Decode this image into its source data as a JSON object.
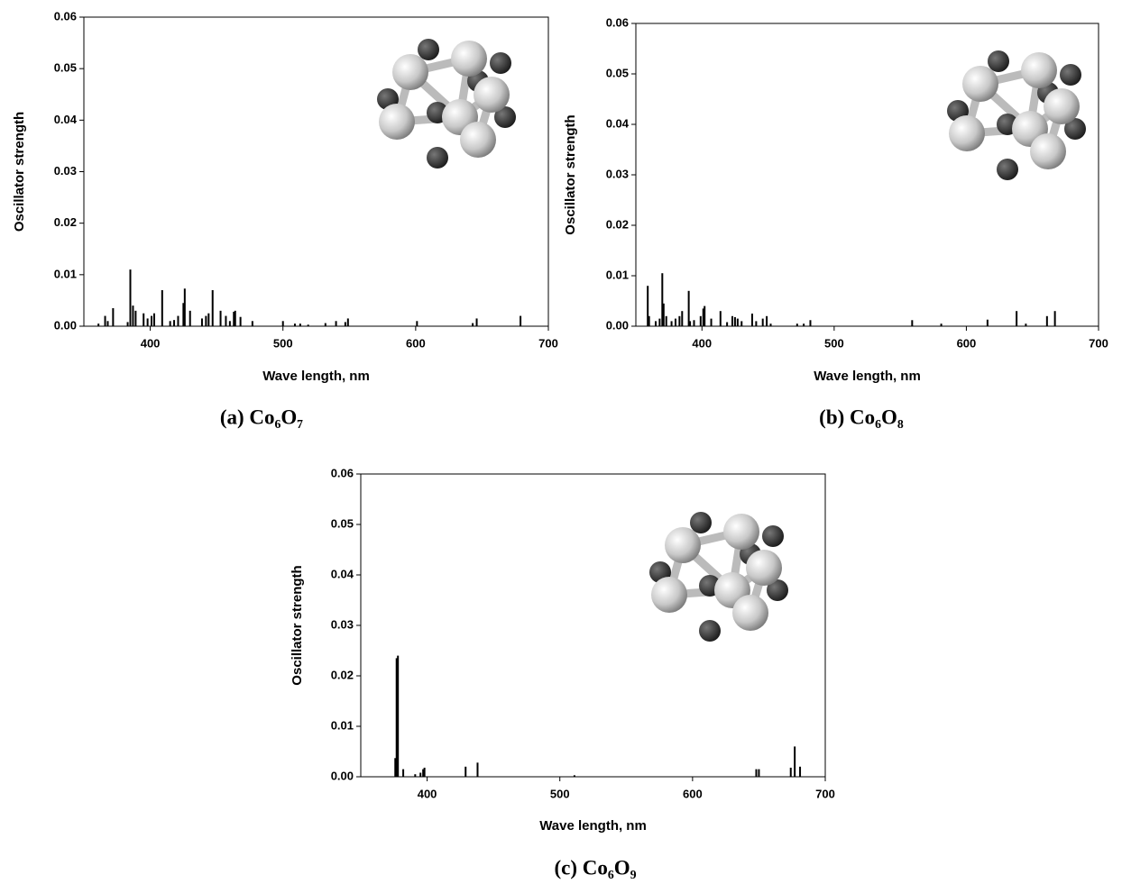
{
  "chart_data": [
    {
      "type": "bar",
      "caption": "(a) Co₆O₇",
      "x_label": "Wave length, nm",
      "y_label": "Oscillator strength",
      "color": "#000000",
      "xlim": [
        350,
        700
      ],
      "xticks": [
        400,
        500,
        600,
        700
      ],
      "ylim": [
        0,
        0.06
      ],
      "yticks": [
        {
          "value": 0,
          "label": "0.00"
        },
        0.01,
        0.02,
        0.03,
        0.04,
        0.05,
        0.06
      ],
      "x": [
        361,
        366,
        368,
        372,
        383,
        385,
        387,
        389,
        395,
        398,
        401,
        403,
        409,
        415,
        418,
        421,
        425,
        426,
        430,
        439,
        442,
        444,
        447,
        453,
        457,
        460,
        463,
        464,
        468,
        477,
        500,
        509,
        513,
        519,
        532,
        540,
        547,
        549,
        601,
        643,
        646,
        679
      ],
      "values": [
        0.0005,
        0.002,
        0.001,
        0.0035,
        0.0008,
        0.011,
        0.004,
        0.003,
        0.0025,
        0.0015,
        0.002,
        0.0025,
        0.007,
        0.001,
        0.0012,
        0.002,
        0.0045,
        0.0073,
        0.003,
        0.0015,
        0.002,
        0.0025,
        0.007,
        0.003,
        0.002,
        0.001,
        0.0028,
        0.003,
        0.0018,
        0.001,
        0.001,
        0.0005,
        0.0005,
        0.0003,
        0.0006,
        0.001,
        0.0008,
        0.0015,
        0.001,
        0.0006,
        0.0015,
        0.002
      ]
    },
    {
      "type": "bar",
      "caption": "(b) Co₆O₈",
      "x_label": "Wave length, nm",
      "y_label": "Oscillator strength",
      "color": "#000000",
      "xlim": [
        350,
        700
      ],
      "xticks": [
        400,
        500,
        600,
        700
      ],
      "ylim": [
        0,
        0.06
      ],
      "yticks": [
        {
          "value": 0,
          "label": "0.00"
        },
        0.01,
        0.02,
        0.03,
        0.04,
        0.05,
        0.06
      ],
      "x": [
        359,
        360,
        365,
        368,
        370,
        371,
        373,
        377,
        380,
        383,
        385,
        390,
        391,
        394,
        399,
        401,
        402,
        407,
        414,
        419,
        423,
        425,
        427,
        430,
        438,
        441,
        446,
        449,
        452,
        472,
        477,
        482,
        559,
        581,
        616,
        638,
        645,
        661,
        667
      ],
      "values": [
        0.008,
        0.002,
        0.001,
        0.0015,
        0.0105,
        0.0045,
        0.002,
        0.001,
        0.0015,
        0.002,
        0.003,
        0.007,
        0.001,
        0.0012,
        0.002,
        0.0035,
        0.004,
        0.0015,
        0.003,
        0.0008,
        0.002,
        0.0018,
        0.0015,
        0.001,
        0.0025,
        0.001,
        0.0015,
        0.002,
        0.0005,
        0.0005,
        0.0005,
        0.0012,
        0.0012,
        0.0005,
        0.0013,
        0.003,
        0.0005,
        0.002,
        0.003
      ]
    },
    {
      "type": "bar",
      "caption": "(c) Co₆O₉",
      "x_label": "Wave length, nm",
      "y_label": "Oscillator strength",
      "color": "#000000",
      "xlim": [
        350,
        700
      ],
      "xticks": [
        400,
        500,
        600,
        700
      ],
      "ylim": [
        0,
        0.06
      ],
      "yticks": [
        {
          "value": 0,
          "label": "0.00"
        },
        0.01,
        0.02,
        0.03,
        0.04,
        0.05,
        0.06
      ],
      "x": [
        376,
        377,
        378,
        382,
        391,
        395,
        397,
        398,
        429,
        438,
        511,
        648,
        650,
        674,
        677,
        681
      ],
      "values": [
        0.0037,
        0.0235,
        0.024,
        0.0015,
        0.0005,
        0.0008,
        0.0015,
        0.0018,
        0.002,
        0.0028,
        0.0003,
        0.0015,
        0.0015,
        0.0018,
        0.006,
        0.002
      ]
    }
  ]
}
